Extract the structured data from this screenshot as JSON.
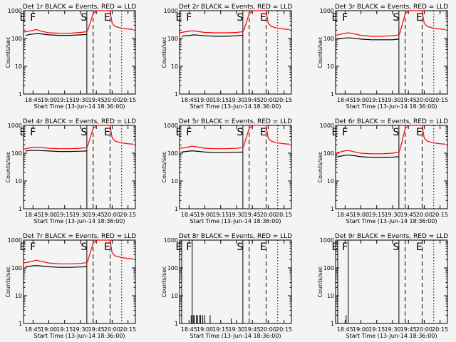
{
  "colors": {
    "background": "#f4f4f4",
    "events": "#000000",
    "lld": "#ff0000"
  },
  "axis": {
    "ylabel": "Counts/sec",
    "xlabel": "Start Time (13-Jun-14 18:36:00)",
    "y_ticks": [
      1,
      10,
      100,
      1000
    ],
    "y_tick_labels": [
      "1",
      "10",
      "100",
      "1000"
    ],
    "x_ticks": [
      "18:45",
      "19:00",
      "19:15",
      "19:30",
      "19:45",
      "20:00",
      "20:15"
    ],
    "ylim": [
      1,
      1000
    ],
    "xlim": [
      "18:36",
      "20:22"
    ],
    "yscale": "log"
  },
  "chart_data": [
    {
      "type": "line",
      "title": "Det 1r BLACK = Events, RED = LLD",
      "markers": [
        {
          "label": "E",
          "time": "18:38",
          "style": "solid"
        },
        {
          "label": "F",
          "time": "18:48",
          "style": "solid"
        },
        {
          "label": "S",
          "time": "19:36",
          "style": "solid"
        },
        {
          "label": "E",
          "time": "19:58",
          "style": "solid"
        }
      ],
      "vlines": [
        {
          "time": "19:36",
          "style": "solid"
        },
        {
          "time": "19:42",
          "style": "dashed"
        },
        {
          "time": "19:58",
          "style": "dashed"
        },
        {
          "time": "20:09",
          "style": "dotted"
        }
      ],
      "series": [
        {
          "name": "LLD",
          "color": "#ff0000",
          "x": [
            "18:36",
            "18:40",
            "18:44",
            "18:48",
            "18:52",
            "19:00",
            "19:10",
            "19:20",
            "19:30",
            "19:36",
            "19:37",
            "19:42",
            "19:46",
            "19:50",
            "19:55",
            "19:57",
            "19:58",
            "19:59",
            "20:00",
            "20:03",
            "20:08",
            "20:14",
            "20:20"
          ],
          "y": [
            170,
            180,
            190,
            210,
            185,
            160,
            155,
            155,
            165,
            175,
            200,
            800,
            1000,
            1000,
            1000,
            1000,
            1000,
            600,
            350,
            270,
            240,
            220,
            210
          ]
        },
        {
          "name": "Events",
          "color": "#000000",
          "x": [
            "18:38",
            "18:42",
            "18:46",
            "18:50",
            "19:00",
            "19:10",
            "19:20",
            "19:30",
            "19:36"
          ],
          "y": [
            130,
            140,
            145,
            150,
            135,
            130,
            130,
            135,
            140
          ]
        }
      ]
    },
    {
      "type": "line",
      "title": "Det 2r BLACK = Events, RED = LLD",
      "markers": [
        {
          "label": "E",
          "time": "18:38",
          "style": "solid"
        },
        {
          "label": "F",
          "time": "18:48",
          "style": "solid"
        },
        {
          "label": "S",
          "time": "19:36",
          "style": "solid"
        },
        {
          "label": "E",
          "time": "19:58",
          "style": "solid"
        }
      ],
      "vlines": [
        {
          "time": "19:36",
          "style": "solid"
        },
        {
          "time": "19:42",
          "style": "dashed"
        },
        {
          "time": "19:58",
          "style": "dashed"
        },
        {
          "time": "20:09",
          "style": "dotted"
        }
      ],
      "series": [
        {
          "name": "LLD",
          "color": "#ff0000",
          "x": [
            "18:36",
            "18:40",
            "18:44",
            "18:48",
            "18:52",
            "19:00",
            "19:10",
            "19:20",
            "19:30",
            "19:36",
            "19:37",
            "19:42",
            "19:46",
            "19:50",
            "19:55",
            "19:57",
            "19:58",
            "19:59",
            "20:00",
            "20:03",
            "20:08",
            "20:14",
            "20:20"
          ],
          "y": [
            160,
            170,
            180,
            190,
            180,
            165,
            160,
            160,
            165,
            175,
            200,
            800,
            1000,
            1000,
            1000,
            1000,
            1000,
            600,
            350,
            270,
            240,
            220,
            210
          ]
        },
        {
          "name": "Events",
          "color": "#000000",
          "x": [
            "18:38",
            "18:42",
            "18:46",
            "18:50",
            "19:00",
            "19:10",
            "19:20",
            "19:30",
            "19:36"
          ],
          "y": [
            120,
            125,
            130,
            135,
            125,
            120,
            120,
            125,
            130
          ]
        }
      ]
    },
    {
      "type": "line",
      "title": "Det 3r BLACK = Events, RED = LLD",
      "markers": [
        {
          "label": "E",
          "time": "18:38",
          "style": "solid"
        },
        {
          "label": "F",
          "time": "18:48",
          "style": "solid"
        },
        {
          "label": "S",
          "time": "19:36",
          "style": "solid"
        },
        {
          "label": "E",
          "time": "19:58",
          "style": "solid"
        }
      ],
      "vlines": [
        {
          "time": "19:36",
          "style": "solid"
        },
        {
          "time": "19:42",
          "style": "dashed"
        },
        {
          "time": "19:58",
          "style": "dashed"
        },
        {
          "time": "20:09",
          "style": "dotted"
        }
      ],
      "series": [
        {
          "name": "LLD",
          "color": "#ff0000",
          "x": [
            "18:36",
            "18:40",
            "18:44",
            "18:48",
            "18:52",
            "19:00",
            "19:10",
            "19:20",
            "19:30",
            "19:36",
            "19:37",
            "19:42",
            "19:46",
            "19:50",
            "19:55",
            "19:57",
            "19:58",
            "19:59",
            "20:00",
            "20:03",
            "20:08",
            "20:14",
            "20:20"
          ],
          "y": [
            130,
            140,
            150,
            160,
            150,
            130,
            120,
            120,
            125,
            135,
            160,
            800,
            1000,
            1000,
            1000,
            1000,
            1000,
            600,
            350,
            270,
            240,
            220,
            210
          ]
        },
        {
          "name": "Events",
          "color": "#000000",
          "x": [
            "18:38",
            "18:42",
            "18:46",
            "18:50",
            "19:00",
            "19:10",
            "19:20",
            "19:30",
            "19:36"
          ],
          "y": [
            95,
            100,
            105,
            105,
            95,
            90,
            90,
            90,
            95
          ]
        }
      ]
    },
    {
      "type": "line",
      "title": "Det 4r BLACK = Events, RED = LLD",
      "markers": [
        {
          "label": "E",
          "time": "18:38",
          "style": "solid"
        },
        {
          "label": "F",
          "time": "18:48",
          "style": "solid"
        },
        {
          "label": "S",
          "time": "19:36",
          "style": "solid"
        },
        {
          "label": "E",
          "time": "19:58",
          "style": "solid"
        }
      ],
      "vlines": [
        {
          "time": "19:36",
          "style": "solid"
        },
        {
          "time": "19:42",
          "style": "dashed"
        },
        {
          "time": "19:58",
          "style": "dashed"
        },
        {
          "time": "20:09",
          "style": "dotted"
        }
      ],
      "series": [
        {
          "name": "LLD",
          "color": "#ff0000",
          "x": [
            "18:36",
            "18:40",
            "18:44",
            "18:48",
            "18:52",
            "19:00",
            "19:10",
            "19:20",
            "19:30",
            "19:36",
            "19:37",
            "19:42",
            "19:46",
            "19:50",
            "19:55",
            "19:57",
            "19:58",
            "19:59",
            "20:00",
            "20:03",
            "20:08",
            "20:14",
            "20:20"
          ],
          "y": [
            140,
            150,
            160,
            165,
            160,
            150,
            145,
            145,
            150,
            160,
            190,
            800,
            1000,
            1000,
            1000,
            1000,
            1000,
            600,
            350,
            270,
            240,
            220,
            210
          ]
        },
        {
          "name": "Events",
          "color": "#000000",
          "x": [
            "18:38",
            "18:42",
            "18:46",
            "18:50",
            "19:00",
            "19:10",
            "19:20",
            "19:30",
            "19:36"
          ],
          "y": [
            120,
            125,
            125,
            125,
            120,
            115,
            115,
            118,
            120
          ]
        }
      ]
    },
    {
      "type": "line",
      "title": "Det 5r BLACK = Events, RED = LLD",
      "markers": [
        {
          "label": "E",
          "time": "18:38",
          "style": "solid"
        },
        {
          "label": "F",
          "time": "18:48",
          "style": "solid"
        },
        {
          "label": "S",
          "time": "19:36",
          "style": "solid"
        },
        {
          "label": "E",
          "time": "19:58",
          "style": "solid"
        }
      ],
      "vlines": [
        {
          "time": "19:36",
          "style": "solid"
        },
        {
          "time": "19:42",
          "style": "dashed"
        },
        {
          "time": "19:58",
          "style": "dashed"
        },
        {
          "time": "20:09",
          "style": "dotted"
        }
      ],
      "series": [
        {
          "name": "LLD",
          "color": "#ff0000",
          "x": [
            "18:36",
            "18:40",
            "18:44",
            "18:48",
            "18:52",
            "19:00",
            "19:10",
            "19:20",
            "19:30",
            "19:36",
            "19:37",
            "19:42",
            "19:46",
            "19:50",
            "19:55",
            "19:57",
            "19:58",
            "19:59",
            "20:00",
            "20:03",
            "20:08",
            "20:14",
            "20:20"
          ],
          "y": [
            150,
            155,
            165,
            180,
            170,
            150,
            145,
            145,
            150,
            160,
            190,
            800,
            1000,
            1000,
            1000,
            1000,
            1000,
            600,
            350,
            270,
            240,
            220,
            210
          ]
        },
        {
          "name": "Events",
          "color": "#000000",
          "x": [
            "18:38",
            "18:42",
            "18:46",
            "18:50",
            "19:00",
            "19:10",
            "19:20",
            "19:30",
            "19:36"
          ],
          "y": [
            110,
            115,
            120,
            120,
            110,
            105,
            105,
            108,
            110
          ]
        }
      ]
    },
    {
      "type": "line",
      "title": "Det 6r BLACK = Events, RED = LLD",
      "markers": [
        {
          "label": "E",
          "time": "18:38",
          "style": "solid"
        },
        {
          "label": "F",
          "time": "18:48",
          "style": "solid"
        },
        {
          "label": "S",
          "time": "19:36",
          "style": "solid"
        },
        {
          "label": "E",
          "time": "19:58",
          "style": "solid"
        }
      ],
      "vlines": [
        {
          "time": "19:36",
          "style": "solid"
        },
        {
          "time": "19:42",
          "style": "dashed"
        },
        {
          "time": "19:58",
          "style": "dashed"
        },
        {
          "time": "20:09",
          "style": "dotted"
        }
      ],
      "series": [
        {
          "name": "LLD",
          "color": "#ff0000",
          "x": [
            "18:36",
            "18:40",
            "18:44",
            "18:48",
            "18:52",
            "19:00",
            "19:10",
            "19:20",
            "19:30",
            "19:36",
            "19:37",
            "19:42",
            "19:46",
            "19:50",
            "19:55",
            "19:57",
            "19:58",
            "19:59",
            "20:00",
            "20:03",
            "20:08",
            "20:14",
            "20:20"
          ],
          "y": [
            100,
            110,
            120,
            125,
            115,
            100,
            95,
            95,
            100,
            110,
            130,
            800,
            1000,
            1000,
            1000,
            1000,
            1000,
            600,
            350,
            270,
            240,
            220,
            210
          ]
        },
        {
          "name": "Events",
          "color": "#000000",
          "x": [
            "18:38",
            "18:42",
            "18:46",
            "18:50",
            "19:00",
            "19:10",
            "19:20",
            "19:30",
            "19:36"
          ],
          "y": [
            75,
            80,
            85,
            85,
            75,
            70,
            70,
            72,
            75
          ]
        }
      ]
    },
    {
      "type": "line",
      "title": "Det 7r BLACK = Events, RED = LLD",
      "markers": [
        {
          "label": "E",
          "time": "18:38",
          "style": "solid"
        },
        {
          "label": "F",
          "time": "18:48",
          "style": "solid"
        },
        {
          "label": "S",
          "time": "19:36",
          "style": "solid"
        },
        {
          "label": "E",
          "time": "19:58",
          "style": "solid"
        }
      ],
      "vlines": [
        {
          "time": "19:36",
          "style": "solid"
        },
        {
          "time": "19:42",
          "style": "dashed"
        },
        {
          "time": "19:58",
          "style": "dashed"
        },
        {
          "time": "20:09",
          "style": "dotted"
        }
      ],
      "series": [
        {
          "name": "LLD",
          "color": "#ff0000",
          "x": [
            "18:36",
            "18:40",
            "18:44",
            "18:48",
            "18:52",
            "19:00",
            "19:10",
            "19:20",
            "19:30",
            "19:36",
            "19:37",
            "19:42",
            "19:46",
            "19:50",
            "19:55",
            "19:57",
            "19:58",
            "19:59",
            "20:00",
            "20:03",
            "20:08",
            "20:14",
            "20:20"
          ],
          "y": [
            150,
            160,
            170,
            190,
            175,
            150,
            140,
            140,
            145,
            155,
            180,
            800,
            1000,
            1000,
            1000,
            1000,
            1000,
            600,
            350,
            270,
            240,
            220,
            210
          ]
        },
        {
          "name": "Events",
          "color": "#000000",
          "x": [
            "18:38",
            "18:42",
            "18:46",
            "18:50",
            "19:00",
            "19:10",
            "19:20",
            "19:30",
            "19:36"
          ],
          "y": [
            110,
            115,
            120,
            120,
            110,
            105,
            105,
            108,
            110
          ]
        }
      ]
    },
    {
      "type": "line",
      "title": "Det 8r BLACK = Events, RED = LLD",
      "markers": [
        {
          "label": "E",
          "time": "18:38",
          "style": "solid"
        },
        {
          "label": "F",
          "time": "18:48",
          "style": "solid"
        },
        {
          "label": "S",
          "time": "19:36",
          "style": "solid"
        },
        {
          "label": "E",
          "time": "19:58",
          "style": "solid"
        }
      ],
      "vlines": [
        {
          "time": "18:38",
          "style": "solid"
        },
        {
          "time": "18:48",
          "style": "solid"
        },
        {
          "time": "19:36",
          "style": "solid"
        },
        {
          "time": "19:42",
          "style": "dashed"
        },
        {
          "time": "19:58",
          "style": "dashed"
        },
        {
          "time": "20:09",
          "style": "dotted"
        }
      ],
      "spikes": {
        "x": [
          "18:47",
          "18:48",
          "18:49",
          "18:50",
          "18:51",
          "18:52",
          "18:53",
          "18:54",
          "18:55",
          "18:56",
          "18:57",
          "18:58",
          "19:00",
          "19:02",
          "19:05",
          "19:15",
          "19:25"
        ],
        "y": [
          2,
          1,
          2,
          2,
          1,
          2,
          2,
          1,
          2,
          2,
          1,
          2,
          2,
          1,
          2,
          1,
          1.5
        ]
      },
      "series": []
    },
    {
      "type": "line",
      "title": "Det 9r BLACK = Events, RED = LLD",
      "markers": [
        {
          "label": "E",
          "time": "18:38",
          "style": "solid"
        },
        {
          "label": "F",
          "time": "18:48",
          "style": "solid"
        },
        {
          "label": "S",
          "time": "19:36",
          "style": "solid"
        },
        {
          "label": "E",
          "time": "19:58",
          "style": "solid"
        }
      ],
      "vlines": [
        {
          "time": "18:38",
          "style": "solid"
        },
        {
          "time": "18:48",
          "style": "solid"
        },
        {
          "time": "19:36",
          "style": "solid"
        },
        {
          "time": "19:42",
          "style": "dashed"
        },
        {
          "time": "19:58",
          "style": "dashed"
        },
        {
          "time": "20:09",
          "style": "dotted"
        }
      ],
      "spikes": {
        "x": [
          "18:46"
        ],
        "y": [
          2
        ]
      },
      "series": []
    }
  ]
}
